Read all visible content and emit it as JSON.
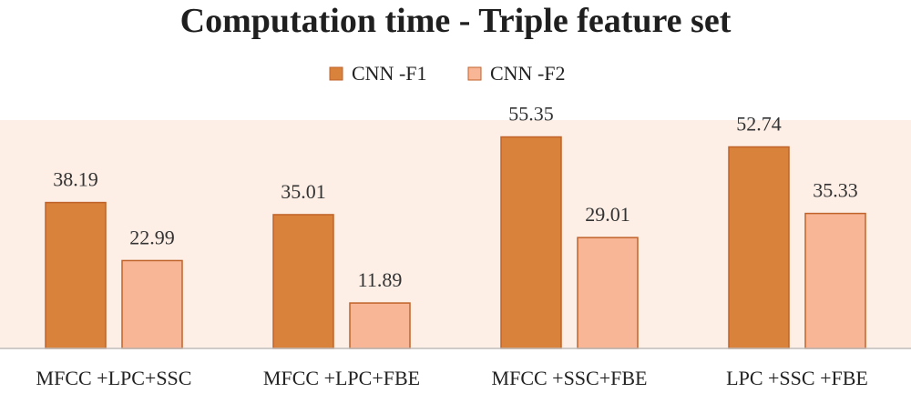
{
  "chart_data": {
    "type": "bar",
    "title": "Computation time - Triple feature set",
    "xlabel": "",
    "ylabel": "",
    "ylim": [
      0,
      60
    ],
    "grid": false,
    "legend_position": "top-center",
    "categories": [
      "MFCC +LPC+SSC",
      "MFCC +LPC+FBE",
      "MFCC +SSC+FBE",
      "LPC +SSC +FBE"
    ],
    "series": [
      {
        "name": "CNN -F1",
        "values": [
          38.19,
          35.01,
          55.35,
          52.74
        ],
        "color": "#D9823B"
      },
      {
        "name": "CNN -F2",
        "values": [
          22.99,
          11.89,
          29.01,
          35.33
        ],
        "color": "#F8B696"
      }
    ],
    "data_labels": [
      [
        "38.19",
        "35.01",
        "55.35",
        "52.74"
      ],
      [
        "22.99",
        "11.89",
        "29.01",
        "35.33"
      ]
    ],
    "colors": {
      "plot_background": "#FDEEE6",
      "bar_stroke": "#C0632A",
      "axis_line": "#BFBFBF"
    }
  }
}
